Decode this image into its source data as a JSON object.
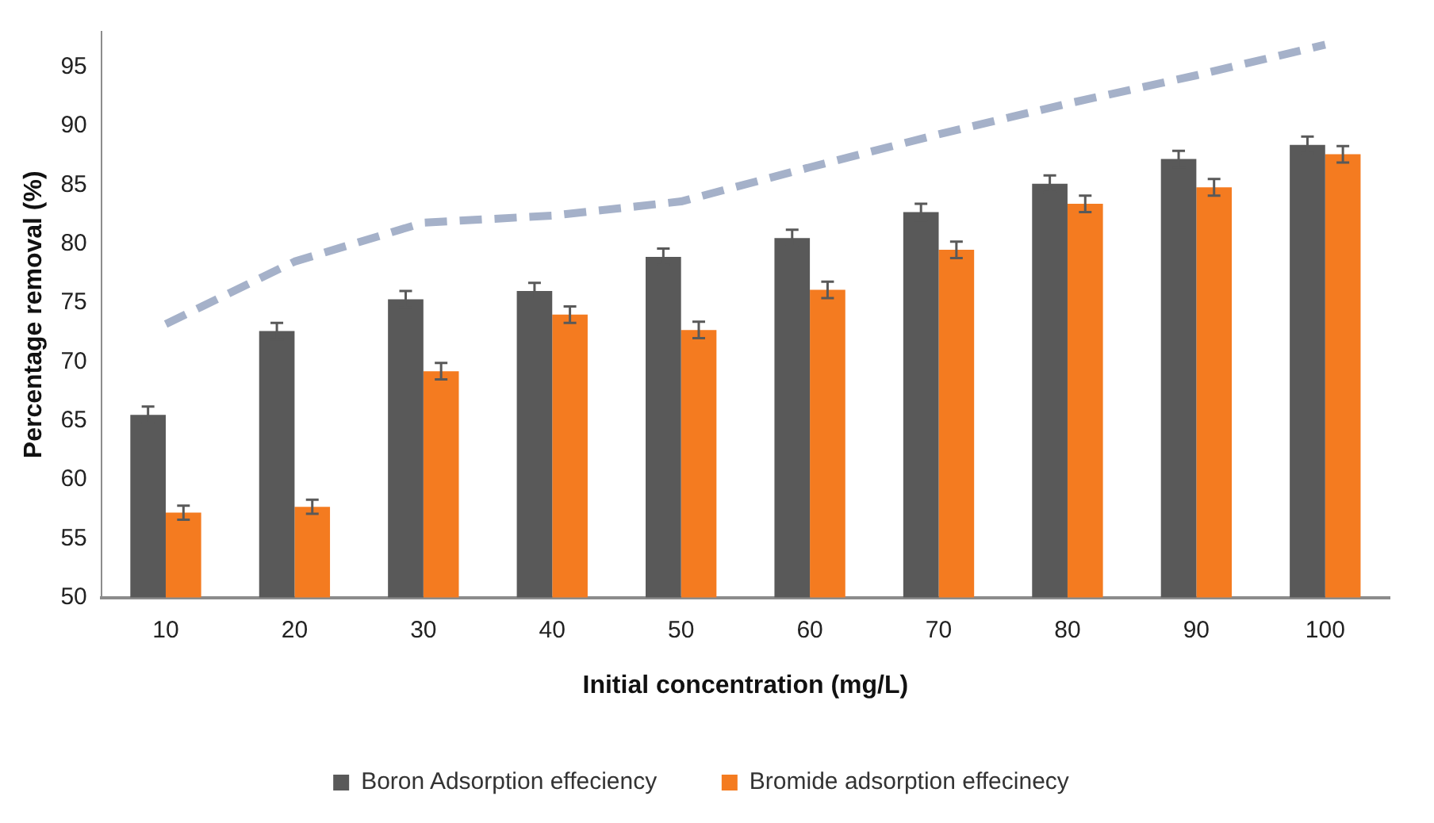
{
  "chart_data": {
    "type": "bar",
    "xlabel": "Initial concentration (mg/L)",
    "ylabel": "Percentage removal (%)",
    "categories": [
      "10",
      "20",
      "30",
      "40",
      "50",
      "60",
      "70",
      "80",
      "90",
      "100"
    ],
    "series": [
      {
        "name": "Boron Adsorption effeciency",
        "color": "#595959",
        "values": [
          65.5,
          72.6,
          75.3,
          76.0,
          78.9,
          80.5,
          82.7,
          85.1,
          87.2,
          88.4
        ],
        "errors": [
          0.7,
          0.7,
          0.7,
          0.7,
          0.7,
          0.7,
          0.7,
          0.7,
          0.7,
          0.7
        ]
      },
      {
        "name": "Bromide adsorption effecinecy",
        "color": "#f47b20",
        "values": [
          57.2,
          57.7,
          69.2,
          74.0,
          72.7,
          76.1,
          79.5,
          83.4,
          84.8,
          87.6
        ],
        "errors": [
          0.6,
          0.6,
          0.7,
          0.7,
          0.7,
          0.7,
          0.7,
          0.7,
          0.7,
          0.7
        ]
      },
      {
        "type": "line",
        "color": "#a5b1c9",
        "line_style": "dashed",
        "marker": "none",
        "values": [
          73.2,
          78.5,
          81.8,
          82.4,
          83.6,
          86.5,
          89.3,
          91.9,
          94.3,
          96.9
        ]
      }
    ],
    "ylim": [
      50,
      98
    ],
    "yticks": [
      50,
      55,
      60,
      65,
      70,
      75,
      80,
      85,
      90,
      95
    ],
    "grid": false,
    "legend": "bottom"
  }
}
